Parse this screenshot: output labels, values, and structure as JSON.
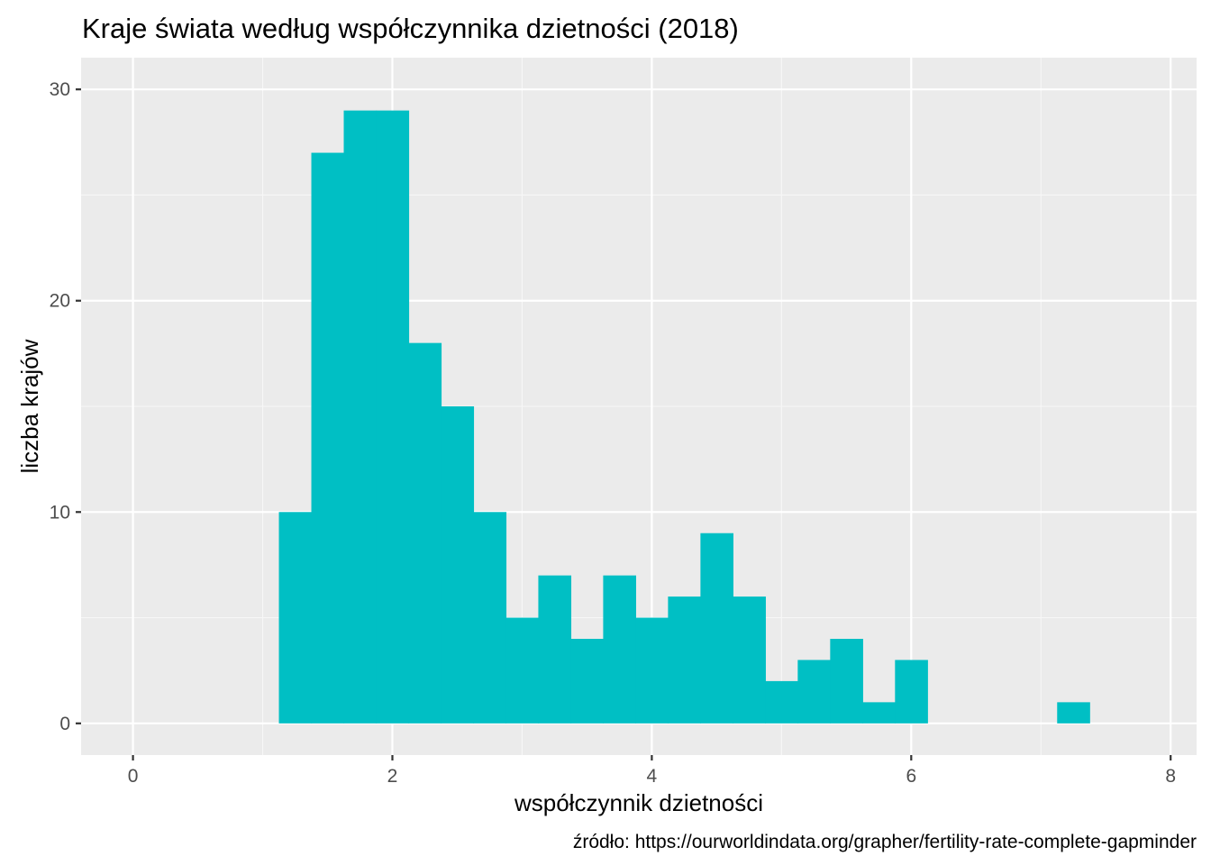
{
  "chart_data": {
    "type": "bar",
    "title": "Kraje świata według współczynnika dzietności (2018)",
    "xlabel": "współczynnik dzietności",
    "ylabel": "liczba krajów",
    "caption": "źródło: https://ourworldindata.org/grapher/fertility-rate-complete-gapminder",
    "xlim": [
      -0.4,
      8.2
    ],
    "ylim": [
      -1.5,
      31.5
    ],
    "x_ticks": [
      0,
      2,
      4,
      6,
      8
    ],
    "y_ticks": [
      0,
      10,
      20,
      30
    ],
    "bin_width": 0.25,
    "bins": [
      {
        "x0": 1.125,
        "x1": 1.375,
        "count": 10
      },
      {
        "x0": 1.375,
        "x1": 1.625,
        "count": 27
      },
      {
        "x0": 1.625,
        "x1": 1.875,
        "count": 29
      },
      {
        "x0": 1.875,
        "x1": 2.125,
        "count": 29
      },
      {
        "x0": 2.125,
        "x1": 2.375,
        "count": 18
      },
      {
        "x0": 2.375,
        "x1": 2.625,
        "count": 15
      },
      {
        "x0": 2.625,
        "x1": 2.875,
        "count": 10
      },
      {
        "x0": 2.875,
        "x1": 3.125,
        "count": 5
      },
      {
        "x0": 3.125,
        "x1": 3.375,
        "count": 7
      },
      {
        "x0": 3.375,
        "x1": 3.625,
        "count": 4
      },
      {
        "x0": 3.625,
        "x1": 3.875,
        "count": 7
      },
      {
        "x0": 3.875,
        "x1": 4.125,
        "count": 5
      },
      {
        "x0": 4.125,
        "x1": 4.375,
        "count": 6
      },
      {
        "x0": 4.375,
        "x1": 4.625,
        "count": 9
      },
      {
        "x0": 4.625,
        "x1": 4.875,
        "count": 6
      },
      {
        "x0": 4.875,
        "x1": 5.125,
        "count": 2
      },
      {
        "x0": 5.125,
        "x1": 5.375,
        "count": 3
      },
      {
        "x0": 5.375,
        "x1": 5.625,
        "count": 4
      },
      {
        "x0": 5.625,
        "x1": 5.875,
        "count": 1
      },
      {
        "x0": 5.875,
        "x1": 6.125,
        "count": 3
      },
      {
        "x0": 6.125,
        "x1": 6.375,
        "count": 0
      },
      {
        "x0": 6.375,
        "x1": 6.625,
        "count": 0
      },
      {
        "x0": 6.625,
        "x1": 6.875,
        "count": 0
      },
      {
        "x0": 6.875,
        "x1": 7.125,
        "count": 0
      },
      {
        "x0": 7.125,
        "x1": 7.375,
        "count": 1
      }
    ],
    "grid": true,
    "legend": "none",
    "colors": {
      "bar": "#00bfc4",
      "panel": "#ebebeb",
      "grid_major": "#ffffff",
      "grid_minor": "#f7f7f7",
      "tick_text": "#4d4d4d",
      "tick_mark": "#333333"
    }
  }
}
